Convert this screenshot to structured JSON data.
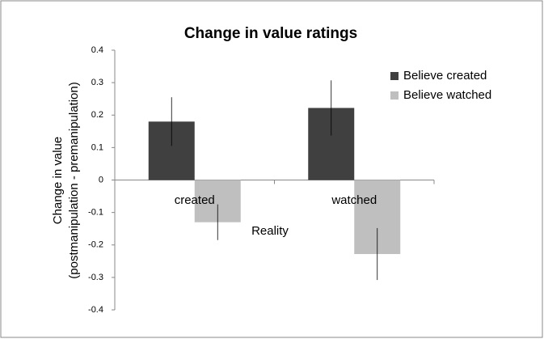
{
  "chart_data": {
    "type": "bar",
    "title": "Change in value ratings",
    "xlabel": "Reality",
    "ylabel": [
      "Change in value",
      "(postmanipulation - premanipulation)"
    ],
    "categories": [
      "created",
      "watched"
    ],
    "series": [
      {
        "name": "Believe created",
        "color": "#404040",
        "values": [
          0.18,
          0.222
        ],
        "errors": [
          0.075,
          0.085
        ]
      },
      {
        "name": "Believe watched",
        "color": "#bfbfbf",
        "values": [
          -0.13,
          -0.228
        ],
        "errors": [
          0.055,
          0.08
        ]
      }
    ],
    "ylim": [
      -0.4,
      0.4
    ],
    "yticks": [
      -0.4,
      -0.3,
      -0.2,
      -0.1,
      0,
      0.1,
      0.2,
      0.3,
      0.4
    ],
    "grid": false,
    "legend": "upper right"
  }
}
